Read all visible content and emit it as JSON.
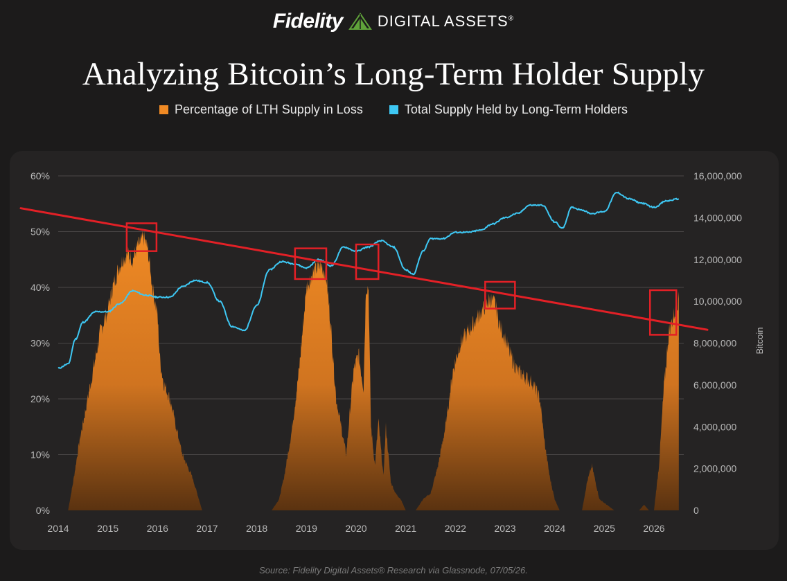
{
  "header": {
    "brand_name": "Fidelity",
    "brand_sub": "DIGITAL ASSETS",
    "brand_reg": "®",
    "logo_color": "#5fa33a"
  },
  "chart_data": {
    "type": "area",
    "title": "Analyzing Bitcoin’s Long-Term Holder Supply",
    "legend": [
      {
        "label": "Percentage of LTH Supply in Loss",
        "color": "#f08a24"
      },
      {
        "label": "Total Supply Held by Long-Term Holders",
        "color": "#3ec8f4"
      }
    ],
    "legend_position": "top-center",
    "grid": true,
    "x_range": [
      2014,
      2026.6
    ],
    "x_ticks": [
      "2014",
      "2015",
      "2016",
      "2017",
      "2018",
      "2019",
      "2020",
      "2021",
      "2022",
      "2023",
      "2024",
      "2025",
      "2026"
    ],
    "y_left": {
      "range": [
        0,
        60
      ],
      "ticks": [
        "0%",
        "10%",
        "20%",
        "30%",
        "40%",
        "50%",
        "60%"
      ]
    },
    "y_right": {
      "label": "Bitcoin",
      "range": [
        0,
        16000000
      ],
      "ticks": [
        "0",
        "2,000,000",
        "4,000,000",
        "6,000,000",
        "8,000,000",
        "10,000,000",
        "12,000,000",
        "14,000,000",
        "16,000,000"
      ]
    },
    "series": [
      {
        "name": "Percentage of LTH Supply in Loss",
        "axis": "left",
        "kind": "area",
        "color": "#f08a24",
        "x": [
          2014.0,
          2014.2,
          2014.3,
          2014.42,
          2014.55,
          2014.7,
          2014.85,
          2015.0,
          2015.1,
          2015.2,
          2015.3,
          2015.4,
          2015.5,
          2015.58,
          2015.65,
          2015.72,
          2015.8,
          2015.9,
          2016.0,
          2016.05,
          2016.12,
          2016.25,
          2016.4,
          2016.5,
          2016.6,
          2016.7,
          2016.8,
          2016.9,
          2017.0,
          2017.3,
          2017.7,
          2018.0,
          2018.3,
          2018.45,
          2018.55,
          2018.7,
          2018.85,
          2019.0,
          2019.15,
          2019.3,
          2019.4,
          2019.5,
          2019.6,
          2019.8,
          2019.95,
          2020.05,
          2020.15,
          2020.2,
          2020.25,
          2020.3,
          2020.38,
          2020.45,
          2020.55,
          2020.6,
          2020.7,
          2020.8,
          2020.9,
          2021.0,
          2021.2,
          2021.35,
          2021.5,
          2021.65,
          2021.8,
          2021.95,
          2022.1,
          2022.25,
          2022.4,
          2022.55,
          2022.7,
          2022.8,
          2022.9,
          2023.0,
          2023.1,
          2023.25,
          2023.4,
          2023.55,
          2023.7,
          2023.8,
          2023.9,
          2024.0,
          2024.1,
          2024.3,
          2024.55,
          2024.65,
          2024.75,
          2024.9,
          2025.2,
          2025.5,
          2025.7,
          2025.8,
          2025.9,
          2026.0,
          2026.1,
          2026.2,
          2026.3,
          2026.4,
          2026.5
        ],
        "y": [
          0,
          0,
          5,
          12,
          18,
          25,
          32,
          36,
          40,
          43,
          45,
          46,
          45,
          47,
          48,
          49,
          47,
          40,
          35,
          27,
          23,
          20,
          14,
          10,
          8,
          6,
          3,
          0,
          0,
          0,
          0,
          0,
          0,
          2,
          6,
          14,
          25,
          40,
          43,
          44,
          42,
          32,
          20,
          10,
          25,
          28,
          22,
          40,
          40,
          15,
          8,
          16,
          6,
          15,
          5,
          3,
          2,
          0,
          0,
          2,
          3,
          8,
          15,
          25,
          30,
          32,
          34,
          36,
          38,
          37,
          33,
          31,
          28,
          25,
          24,
          23,
          20,
          12,
          6,
          2,
          0,
          0,
          0,
          5,
          8,
          2,
          0,
          0,
          0,
          1,
          0,
          0,
          8,
          22,
          32,
          35,
          38
        ]
      },
      {
        "name": "Total Supply Held by Long-Term Holders",
        "axis": "right",
        "kind": "line",
        "color": "#3ec8f4",
        "x": [
          2014.0,
          2014.2,
          2014.35,
          2014.5,
          2014.75,
          2015.0,
          2015.25,
          2015.5,
          2015.75,
          2016.0,
          2016.25,
          2016.5,
          2016.75,
          2017.0,
          2017.25,
          2017.5,
          2017.75,
          2018.0,
          2018.25,
          2018.5,
          2018.75,
          2019.0,
          2019.25,
          2019.5,
          2019.75,
          2020.0,
          2020.25,
          2020.5,
          2020.75,
          2021.0,
          2021.15,
          2021.35,
          2021.5,
          2021.75,
          2022.0,
          2022.25,
          2022.5,
          2022.75,
          2023.0,
          2023.25,
          2023.5,
          2023.75,
          2024.0,
          2024.15,
          2024.35,
          2024.5,
          2024.75,
          2025.0,
          2025.25,
          2025.5,
          2025.75,
          2026.0,
          2026.25,
          2026.5
        ],
        "y": [
          6800000,
          7000000,
          8200000,
          9000000,
          9500000,
          9500000,
          9900000,
          10500000,
          10300000,
          10200000,
          10200000,
          10700000,
          11000000,
          10900000,
          10000000,
          8800000,
          8600000,
          9800000,
          11500000,
          11900000,
          11800000,
          11600000,
          12000000,
          11700000,
          12600000,
          12400000,
          12600000,
          12900000,
          12600000,
          11500000,
          11300000,
          12400000,
          13000000,
          13000000,
          13300000,
          13300000,
          13400000,
          13700000,
          14000000,
          14200000,
          14600000,
          14600000,
          13800000,
          13500000,
          14500000,
          14400000,
          14200000,
          14300000,
          15200000,
          14900000,
          14700000,
          14500000,
          14800000,
          14900000
        ]
      }
    ],
    "trendline": {
      "color": "#e32026",
      "x": [
        2014.0,
        2026.6
      ],
      "y": [
        54.2,
        32.4
      ],
      "axis": "left"
    },
    "highlight_boxes": [
      {
        "x": [
          2015.38,
          2015.98
        ],
        "y": [
          46.5,
          51.5
        ]
      },
      {
        "x": [
          2018.77,
          2019.4
        ],
        "y": [
          41.5,
          47
        ]
      },
      {
        "x": [
          2020.0,
          2020.45
        ],
        "y": [
          41.5,
          47.7
        ]
      },
      {
        "x": [
          2022.6,
          2023.2
        ],
        "y": [
          36.2,
          41
        ]
      },
      {
        "x": [
          2025.92,
          2026.45
        ],
        "y": [
          31.5,
          39.5
        ]
      }
    ]
  },
  "footer": {
    "source": "Source: Fidelity Digital Assets® Research via Glassnode, 07/05/26."
  }
}
